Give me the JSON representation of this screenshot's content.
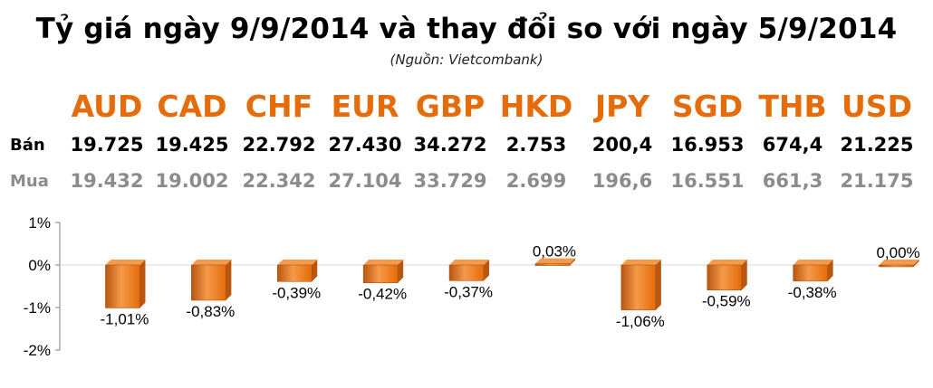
{
  "header": {
    "title": "Tỷ giá ngày 9/9/2014 và thay đổi so với ngày 5/9/2014",
    "source": "(Nguồn: Vietcombank)"
  },
  "rates": {
    "sell_label": "Bán",
    "buy_label": "Mua",
    "currencies": [
      {
        "code": "AUD",
        "sell": "19.725",
        "buy": "19.432"
      },
      {
        "code": "CAD",
        "sell": "19.425",
        "buy": "19.002"
      },
      {
        "code": "CHF",
        "sell": "22.792",
        "buy": "22.342"
      },
      {
        "code": "EUR",
        "sell": "27.430",
        "buy": "27.104"
      },
      {
        "code": "GBP",
        "sell": "34.272",
        "buy": "33.729"
      },
      {
        "code": "HKD",
        "sell": "2.753",
        "buy": "2.699"
      },
      {
        "code": "JPY",
        "sell": "200,4",
        "buy": "196,6"
      },
      {
        "code": "SGD",
        "sell": "16.953",
        "buy": "16.551"
      },
      {
        "code": "THB",
        "sell": "674,4",
        "buy": "661,3"
      },
      {
        "code": "USD",
        "sell": "21.225",
        "buy": "21.175"
      }
    ]
  },
  "colors": {
    "accent": "#e46c0a",
    "bar_dark": "#b9560f",
    "bar_light": "#f49a4a",
    "buy_text": "#8c8c8c"
  },
  "chart_data": {
    "type": "bar",
    "categories": [
      "AUD",
      "CAD",
      "CHF",
      "EUR",
      "GBP",
      "HKD",
      "JPY",
      "SGD",
      "THB",
      "USD"
    ],
    "values": [
      -1.01,
      -0.83,
      -0.39,
      -0.42,
      -0.37,
      0.03,
      -1.06,
      -0.59,
      -0.38,
      0.0
    ],
    "data_labels": [
      "-1,01%",
      "-0,83%",
      "-0,39%",
      "-0,42%",
      "-0,37%",
      "0,03%",
      "-1,06%",
      "-0,59%",
      "-0,38%",
      "0,00%"
    ],
    "y_ticks": [
      "1%",
      "0%",
      "-1%",
      "-2%"
    ],
    "y_tick_values": [
      1,
      0,
      -1,
      -2
    ],
    "ylim": [
      -2,
      1
    ],
    "grid": false,
    "legend": "none",
    "bar_style": "3d"
  }
}
